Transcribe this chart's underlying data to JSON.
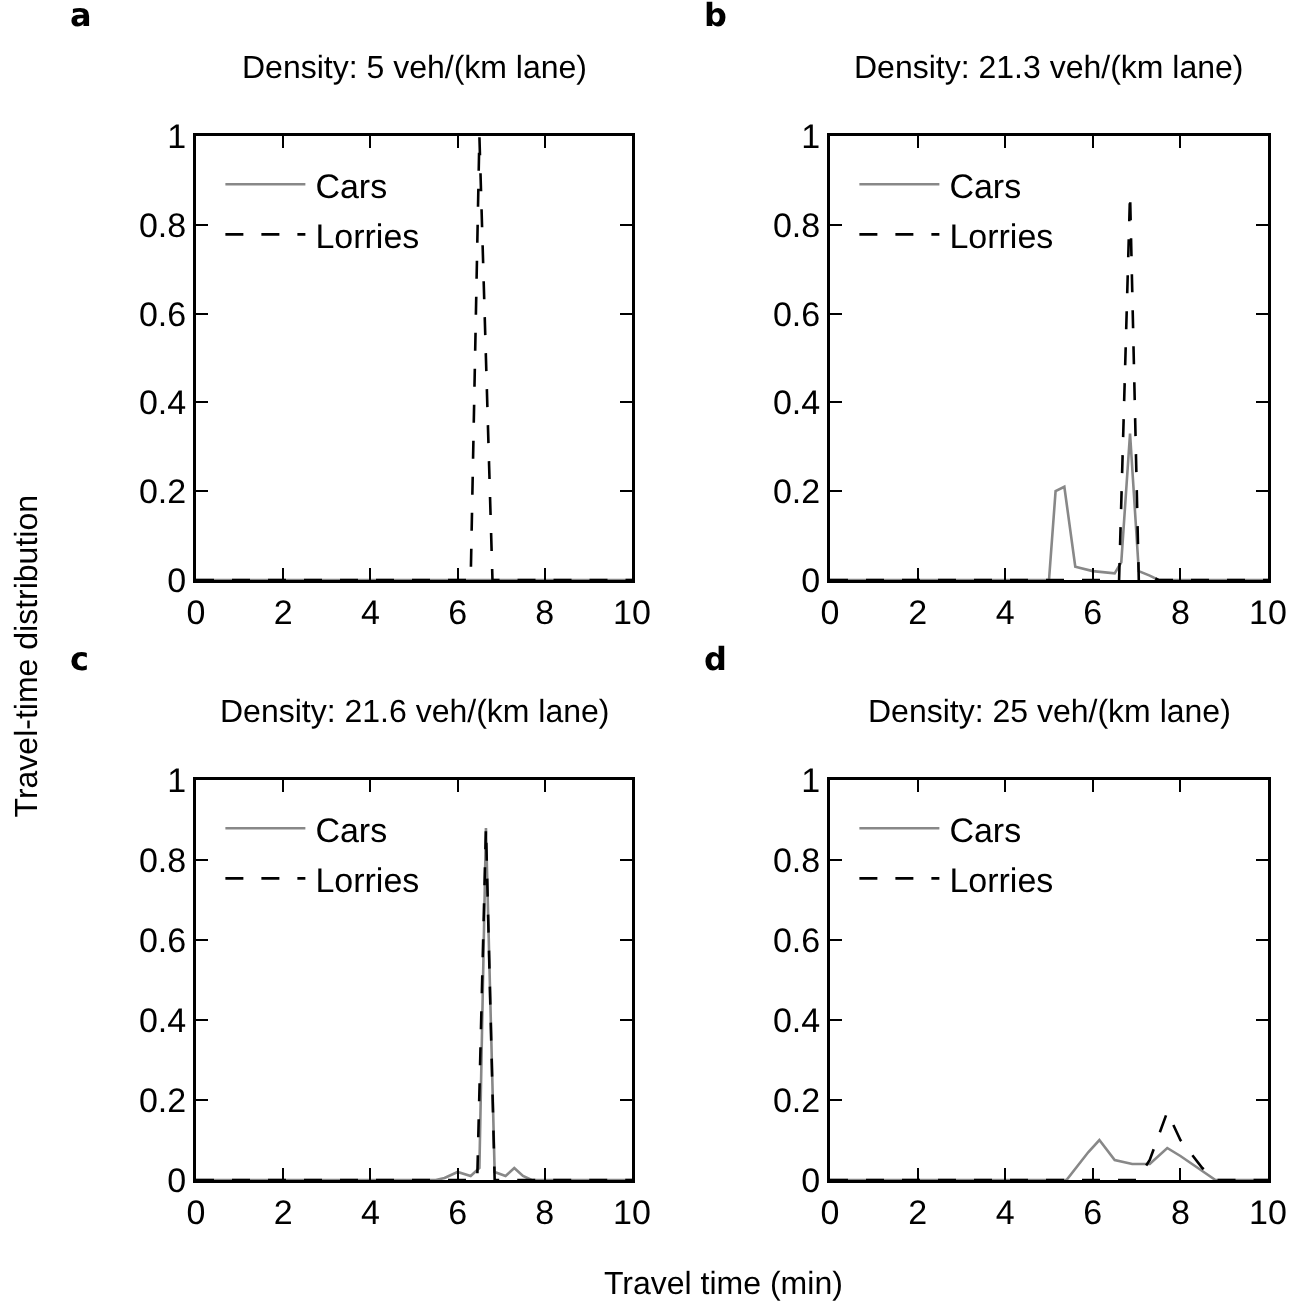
{
  "chart_data": [
    {
      "type": "line",
      "title": "Density: 5 veh/(km lane)",
      "annotations": [
        "a"
      ],
      "ylabel": "Travel-time distribution",
      "xlim": [
        0,
        10
      ],
      "xticks": [
        0,
        2,
        4,
        6,
        8,
        10
      ],
      "ylim": [
        0,
        1
      ],
      "yticks": [
        0,
        0.2,
        0.4,
        0.6,
        0.8,
        1
      ],
      "legend": "top left",
      "series": [
        {
          "name": "Cars",
          "color": "#888888",
          "line_style": "solid",
          "x": [
            0,
            10
          ],
          "values": [
            0,
            0
          ]
        },
        {
          "name": "Lorries",
          "color": "#000000",
          "line_style": "dashed",
          "x": [
            0,
            6.3,
            6.5,
            6.8,
            10
          ],
          "values": [
            0,
            0,
            1,
            0,
            0
          ]
        }
      ]
    },
    {
      "type": "line",
      "title": "Density: 21.3 veh/(km lane)",
      "annotations": [
        "b"
      ],
      "xlim": [
        0,
        10
      ],
      "xticks": [
        0,
        2,
        4,
        6,
        8,
        10
      ],
      "ylim": [
        0,
        1
      ],
      "yticks": [
        0,
        0.2,
        0.4,
        0.6,
        0.8,
        1
      ],
      "legend": "top left",
      "series": [
        {
          "name": "Cars",
          "color": "#888888",
          "line_style": "solid",
          "x": [
            0,
            5.0,
            5.15,
            5.35,
            5.6,
            6.0,
            6.5,
            6.65,
            6.85,
            7.05,
            7.3,
            7.5,
            10
          ],
          "values": [
            0,
            0,
            0.2,
            0.21,
            0.03,
            0.02,
            0.015,
            0.04,
            0.33,
            0.02,
            0.01,
            0,
            0
          ]
        },
        {
          "name": "Lorries",
          "color": "#000000",
          "line_style": "dashed",
          "x": [
            0,
            6.6,
            6.85,
            7.05,
            7.3,
            7.5,
            10
          ],
          "values": [
            0,
            0,
            0.87,
            0,
            0.01,
            0,
            0
          ]
        }
      ]
    },
    {
      "type": "line",
      "title": "Density: 21.6 veh/(km lane)",
      "annotations": [
        "c"
      ],
      "xlabel": "Travel time (min)",
      "xlim": [
        0,
        10
      ],
      "xticks": [
        0,
        2,
        4,
        6,
        8,
        10
      ],
      "ylim": [
        0,
        1
      ],
      "yticks": [
        0,
        0.2,
        0.4,
        0.6,
        0.8,
        1
      ],
      "legend": "top left",
      "series": [
        {
          "name": "Cars",
          "color": "#888888",
          "line_style": "solid",
          "x": [
            0,
            5.5,
            5.7,
            6.0,
            6.3,
            6.5,
            6.65,
            6.85,
            7.1,
            7.3,
            7.5,
            7.7,
            10
          ],
          "values": [
            0,
            0,
            0.005,
            0.02,
            0.01,
            0.03,
            0.88,
            0.02,
            0.01,
            0.03,
            0.01,
            0,
            0
          ]
        },
        {
          "name": "Lorries",
          "color": "#000000",
          "line_style": "dashed",
          "x": [
            0,
            6.45,
            6.65,
            6.85,
            10
          ],
          "values": [
            0,
            0,
            0.88,
            0,
            0
          ]
        }
      ]
    },
    {
      "type": "line",
      "title": "Density: 25 veh/(km lane)",
      "annotations": [
        "d"
      ],
      "xlim": [
        0,
        10
      ],
      "xticks": [
        0,
        2,
        4,
        6,
        8,
        10
      ],
      "ylim": [
        0,
        1
      ],
      "yticks": [
        0,
        0.2,
        0.4,
        0.6,
        0.8,
        1
      ],
      "legend": "top left",
      "series": [
        {
          "name": "Cars",
          "color": "#888888",
          "line_style": "solid",
          "x": [
            0,
            5.4,
            5.9,
            6.15,
            6.5,
            6.9,
            7.3,
            7.7,
            8.0,
            8.4,
            8.8,
            10
          ],
          "values": [
            0,
            0,
            0.07,
            0.1,
            0.05,
            0.04,
            0.04,
            0.08,
            0.06,
            0.03,
            0,
            0
          ]
        },
        {
          "name": "Lorries",
          "color": "#000000",
          "line_style": "dashed",
          "x": [
            0,
            7.0,
            7.3,
            7.7,
            8.0,
            8.5,
            8.8,
            10
          ],
          "values": [
            0,
            0,
            0.05,
            0.17,
            0.1,
            0.03,
            0,
            0
          ]
        }
      ]
    }
  ]
}
